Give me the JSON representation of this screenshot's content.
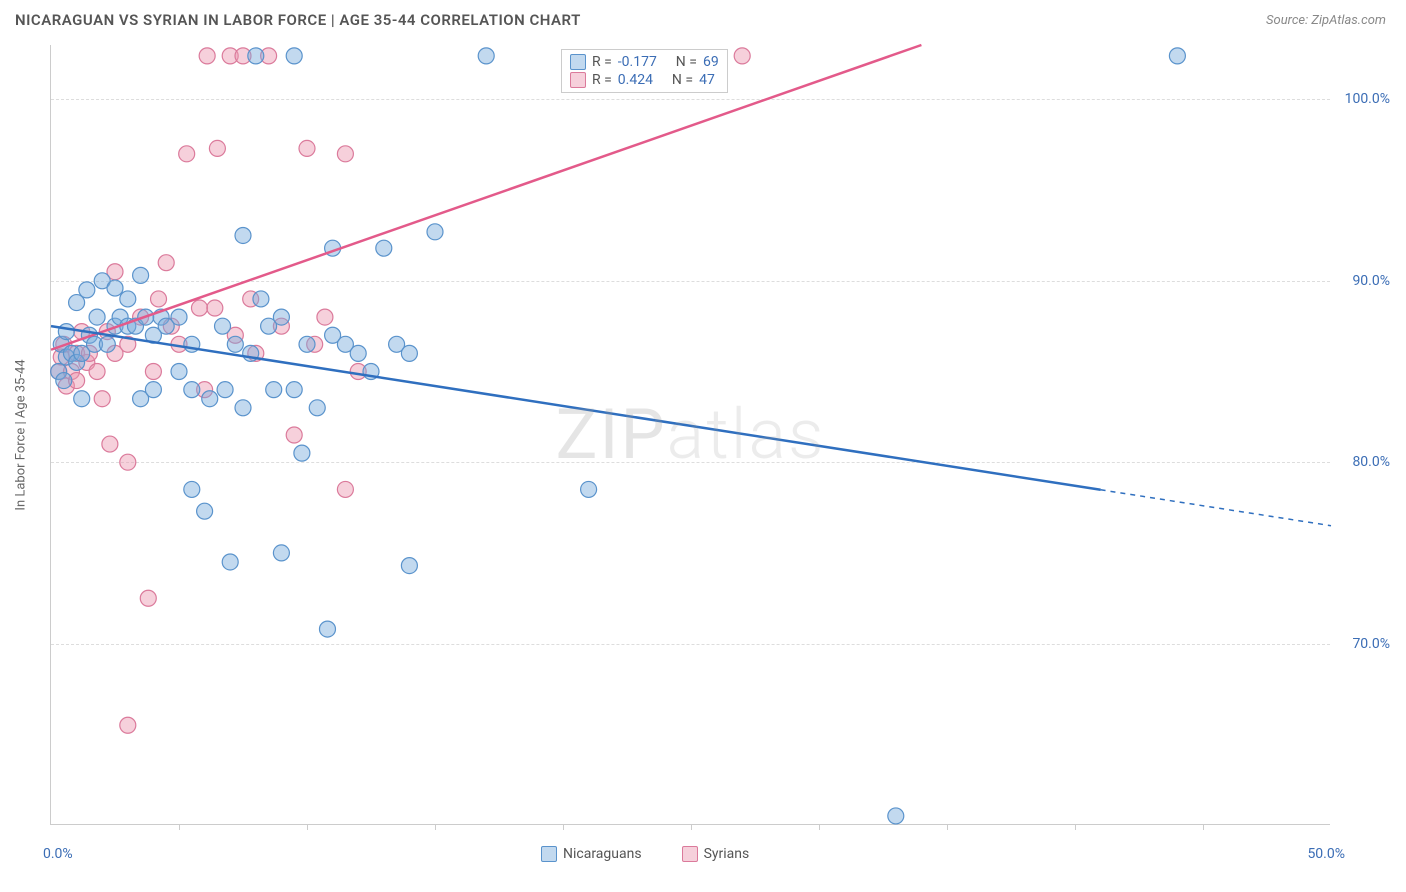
{
  "header": {
    "title": "NICARAGUAN VS SYRIAN IN LABOR FORCE | AGE 35-44 CORRELATION CHART",
    "source": "Source: ZipAtlas.com"
  },
  "watermark": "ZIPatlas",
  "chart": {
    "type": "scatter",
    "y_axis_label": "In Labor Force | Age 35-44",
    "xlim": [
      0,
      50
    ],
    "ylim": [
      60,
      103
    ],
    "y_ticks": [
      70,
      80,
      90,
      100
    ],
    "y_tick_labels": [
      "70.0%",
      "80.0%",
      "90.0%",
      "100.0%"
    ],
    "x_minor_ticks": [
      5,
      10,
      15,
      20,
      25,
      30,
      35,
      40,
      45
    ],
    "x_labels": {
      "min": "0.0%",
      "max": "50.0%"
    },
    "grid_color": "#dddddd",
    "background_color": "#ffffff",
    "series": {
      "nicaraguans": {
        "label": "Nicaraguans",
        "fill": "rgba(120,170,220,0.45)",
        "stroke": "#5a93cc",
        "marker_radius": 8,
        "R": "-0.177",
        "N": "69",
        "trend": {
          "x1": 0,
          "y1": 87.5,
          "x2": 50,
          "y2": 76.5,
          "solid_until_x": 41,
          "color": "#2f6fbf",
          "width": 2.5
        },
        "points": [
          [
            0.3,
            85
          ],
          [
            0.4,
            86.5
          ],
          [
            0.5,
            84.5
          ],
          [
            0.6,
            85.8
          ],
          [
            0.6,
            87.2
          ],
          [
            0.8,
            86
          ],
          [
            1,
            88.8
          ],
          [
            1,
            85.5
          ],
          [
            1.2,
            86
          ],
          [
            1.2,
            83.5
          ],
          [
            1.4,
            89.5
          ],
          [
            1.5,
            87
          ],
          [
            1.7,
            86.5
          ],
          [
            1.8,
            88
          ],
          [
            2,
            90
          ],
          [
            2.2,
            86.5
          ],
          [
            2.5,
            87.5
          ],
          [
            2.5,
            89.6
          ],
          [
            2.7,
            88
          ],
          [
            3,
            87.5
          ],
          [
            3,
            89
          ],
          [
            3.3,
            87.5
          ],
          [
            3.5,
            83.5
          ],
          [
            3.5,
            90.3
          ],
          [
            3.7,
            88
          ],
          [
            4,
            84
          ],
          [
            4,
            87
          ],
          [
            4.3,
            88
          ],
          [
            4.5,
            87.5
          ],
          [
            5,
            88
          ],
          [
            5,
            85
          ],
          [
            5.5,
            86.5
          ],
          [
            5.5,
            84
          ],
          [
            5.5,
            78.5
          ],
          [
            6,
            77.3
          ],
          [
            6.2,
            83.5
          ],
          [
            6.7,
            87.5
          ],
          [
            6.8,
            84
          ],
          [
            7,
            74.5
          ],
          [
            7.2,
            86.5
          ],
          [
            7.5,
            92.5
          ],
          [
            7.5,
            83
          ],
          [
            7.8,
            86
          ],
          [
            8,
            102.4
          ],
          [
            8.2,
            89
          ],
          [
            8.5,
            87.5
          ],
          [
            8.7,
            84
          ],
          [
            9,
            75
          ],
          [
            9,
            88
          ],
          [
            9.5,
            102.4
          ],
          [
            9.5,
            84
          ],
          [
            9.8,
            80.5
          ],
          [
            10,
            86.5
          ],
          [
            10.4,
            83
          ],
          [
            10.8,
            70.8
          ],
          [
            11,
            87
          ],
          [
            11,
            91.8
          ],
          [
            11.5,
            86.5
          ],
          [
            12,
            86
          ],
          [
            12.5,
            85
          ],
          [
            13,
            91.8
          ],
          [
            13.5,
            86.5
          ],
          [
            14,
            86
          ],
          [
            14,
            74.3
          ],
          [
            15,
            92.7
          ],
          [
            17,
            102.4
          ],
          [
            21,
            78.5
          ],
          [
            33,
            60.5
          ],
          [
            44,
            102.4
          ]
        ]
      },
      "syrians": {
        "label": "Syrians",
        "fill": "rgba(235,150,175,0.45)",
        "stroke": "#db7a9b",
        "marker_radius": 8,
        "R": "0.424",
        "N": "47",
        "trend": {
          "x1": 0,
          "y1": 86.2,
          "x2": 34,
          "y2": 103,
          "color": "#e35a8a",
          "width": 2.5
        },
        "points": [
          [
            0.3,
            85
          ],
          [
            0.4,
            85.8
          ],
          [
            0.5,
            86.5
          ],
          [
            0.6,
            84.2
          ],
          [
            0.8,
            85
          ],
          [
            1,
            84.5
          ],
          [
            1,
            86
          ],
          [
            1.2,
            87.2
          ],
          [
            1.4,
            85.5
          ],
          [
            1.5,
            86
          ],
          [
            1.8,
            85
          ],
          [
            2,
            83.5
          ],
          [
            2.2,
            87.2
          ],
          [
            2.3,
            81
          ],
          [
            2.5,
            86
          ],
          [
            2.5,
            90.5
          ],
          [
            3,
            86.5
          ],
          [
            3,
            80
          ],
          [
            3.5,
            88
          ],
          [
            3.8,
            72.5
          ],
          [
            4,
            85
          ],
          [
            4.2,
            89
          ],
          [
            4.5,
            91
          ],
          [
            4.7,
            87.5
          ],
          [
            5,
            86.5
          ],
          [
            5.3,
            97
          ],
          [
            5.8,
            88.5
          ],
          [
            6,
            84
          ],
          [
            6.1,
            102.4
          ],
          [
            6.4,
            88.5
          ],
          [
            6.5,
            97.3
          ],
          [
            7,
            102.4
          ],
          [
            7.2,
            87
          ],
          [
            7.5,
            102.4
          ],
          [
            7.8,
            89
          ],
          [
            8,
            86
          ],
          [
            8.5,
            102.4
          ],
          [
            9,
            87.5
          ],
          [
            9.5,
            81.5
          ],
          [
            10,
            97.3
          ],
          [
            10.3,
            86.5
          ],
          [
            10.7,
            88
          ],
          [
            11.5,
            78.5
          ],
          [
            11.5,
            97
          ],
          [
            12,
            85
          ],
          [
            27,
            102.4
          ],
          [
            3,
            65.5
          ]
        ]
      }
    }
  },
  "legend_box": {
    "rows": [
      {
        "swatch_fill": "rgba(120,170,220,0.45)",
        "swatch_stroke": "#5a93cc",
        "r_label": "R =",
        "r_val": "-0.177",
        "n_label": "N =",
        "n_val": "69"
      },
      {
        "swatch_fill": "rgba(235,150,175,0.45)",
        "swatch_stroke": "#db7a9b",
        "r_label": "R =",
        "r_val": "0.424",
        "n_label": "N =",
        "n_val": "47"
      }
    ]
  }
}
